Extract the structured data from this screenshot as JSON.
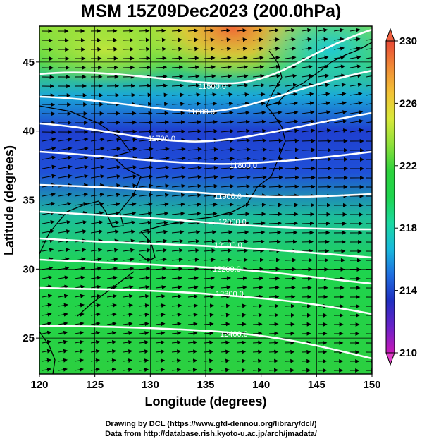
{
  "title": "MSM 15Z09Dec2023 (200.0hPa)",
  "map": {
    "xlabel": "Longitude (degrees)",
    "ylabel": "Latitude  (degrees)",
    "x_range": [
      120,
      150
    ],
    "y_range": [
      22.4,
      47.6
    ],
    "x_ticks": [
      "120",
      "125",
      "130",
      "135",
      "140",
      "145",
      "150"
    ],
    "y_ticks": [
      "25",
      "30",
      "35",
      "40",
      "45"
    ],
    "contour_labels": [
      "11500.0",
      "11600.0",
      "11700.0",
      "11800.0",
      "11900.0",
      "12000.0",
      "12100.0",
      "12200.0",
      "12300.0",
      "12400.0"
    ]
  },
  "colorbar": {
    "range": [
      210,
      230
    ],
    "tick_labels": [
      "230",
      "226",
      "222",
      "218",
      "214",
      "210"
    ],
    "colors": [
      "#c818b8",
      "#6a22c8",
      "#1f2fc0",
      "#1f6ee0",
      "#18b9dc",
      "#1bd9a0",
      "#1ed44e",
      "#2dd23c",
      "#8ee03a",
      "#d8e83a",
      "#f2c236",
      "#f08a36",
      "#e84836"
    ]
  },
  "credits": {
    "line1": "Drawing by DCL (https://www.gfd-dennou.org/library/dcl/)",
    "line2": "Data from http://database.rish.kyoto-u.ac.jp/arch/jmadata/"
  }
}
